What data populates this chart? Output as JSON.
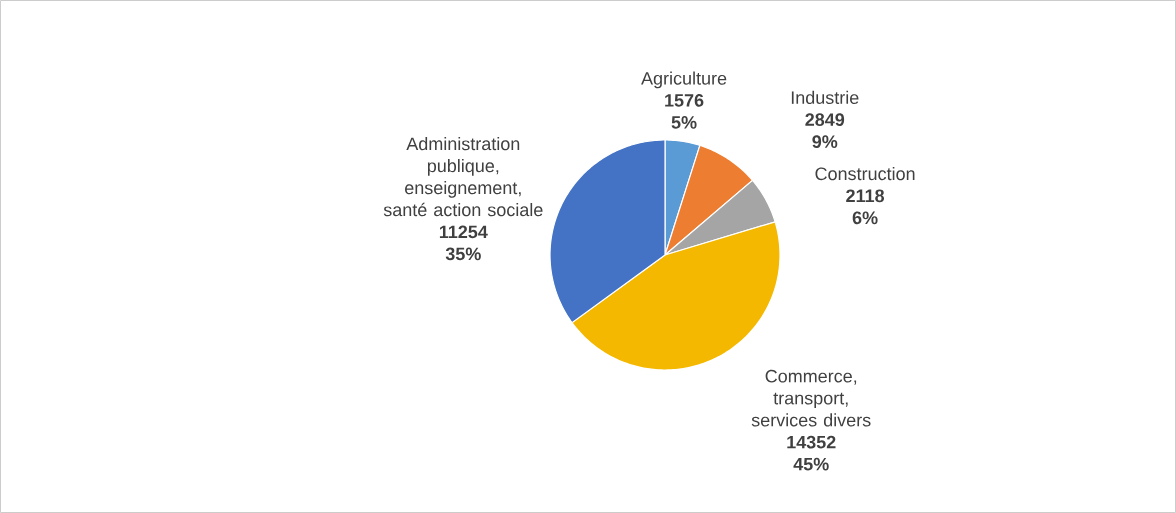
{
  "chart_data": {
    "type": "pie",
    "categories": [
      "Agriculture",
      "Industrie",
      "Construction",
      "Commerce, transport, services divers",
      "Administration publique, enseignement, santé action sociale"
    ],
    "values": [
      1576,
      2849,
      2118,
      14352,
      11254
    ],
    "colors": [
      "#5b9bd5",
      "#ed7d31",
      "#a5a5a5",
      "#f5b800",
      "#4472c4"
    ],
    "value_labels": [
      "1576 5%",
      "2849 9%",
      "2118 6%",
      "14352 45%",
      "11254 35%"
    ]
  }
}
